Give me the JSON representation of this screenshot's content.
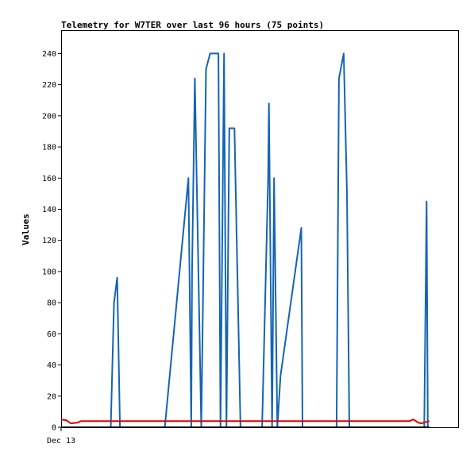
{
  "chart_data": {
    "type": "line",
    "title": "Telemetry for W7TER over last 96 hours (75 points)",
    "xlabel": "",
    "ylabel": "Values",
    "ylim": [
      0,
      255
    ],
    "xlim": [
      0,
      96
    ],
    "x_tick_labels": [
      {
        "x": 0,
        "label": "Dec 13"
      }
    ],
    "y_ticks": [
      0,
      20,
      40,
      60,
      80,
      100,
      120,
      140,
      160,
      180,
      200,
      220,
      240
    ],
    "grid": false,
    "legend": "none",
    "series": [
      {
        "color": "#1464b4",
        "points": [
          [
            12.4,
            0
          ],
          [
            13.2,
            80
          ],
          [
            14.0,
            96
          ],
          [
            14.7,
            0
          ],
          [
            25.9,
            0
          ],
          [
            31.8,
            160
          ],
          [
            32.5,
            0
          ],
          [
            32.7,
            100
          ],
          [
            33.4,
            224
          ],
          [
            35.0,
            0
          ],
          [
            36.2,
            230
          ],
          [
            37.2,
            240
          ],
          [
            39.3,
            240
          ],
          [
            39.8,
            0
          ],
          [
            40.7,
            240
          ],
          [
            41.3,
            0
          ],
          [
            42.0,
            192
          ],
          [
            43.3,
            192
          ],
          [
            44.8,
            0
          ],
          [
            50.2,
            0
          ],
          [
            51.7,
            160
          ],
          [
            51.9,
            208
          ],
          [
            52.7,
            0
          ],
          [
            53.2,
            160
          ],
          [
            54.0,
            0
          ],
          [
            54.8,
            33
          ],
          [
            60.0,
            128
          ],
          [
            60.3,
            0
          ],
          [
            68.8,
            0
          ],
          [
            69.4,
            224
          ],
          [
            70.6,
            240
          ],
          [
            71.4,
            150
          ],
          [
            72.0,
            0
          ],
          [
            90.7,
            0
          ],
          [
            91.3,
            145
          ],
          [
            91.6,
            0
          ]
        ]
      },
      {
        "color": "#e00000",
        "points": [
          [
            0,
            5
          ],
          [
            1.3,
            4.5
          ],
          [
            2.4,
            2.5
          ],
          [
            4.1,
            3
          ],
          [
            5.0,
            4
          ],
          [
            87.0,
            4
          ],
          [
            88.0,
            5
          ],
          [
            89.2,
            3
          ],
          [
            90.0,
            2.5
          ],
          [
            92.0,
            4
          ]
        ]
      },
      {
        "color": "#000000",
        "points": [
          [
            0,
            0
          ],
          [
            92.0,
            0
          ]
        ]
      }
    ]
  }
}
